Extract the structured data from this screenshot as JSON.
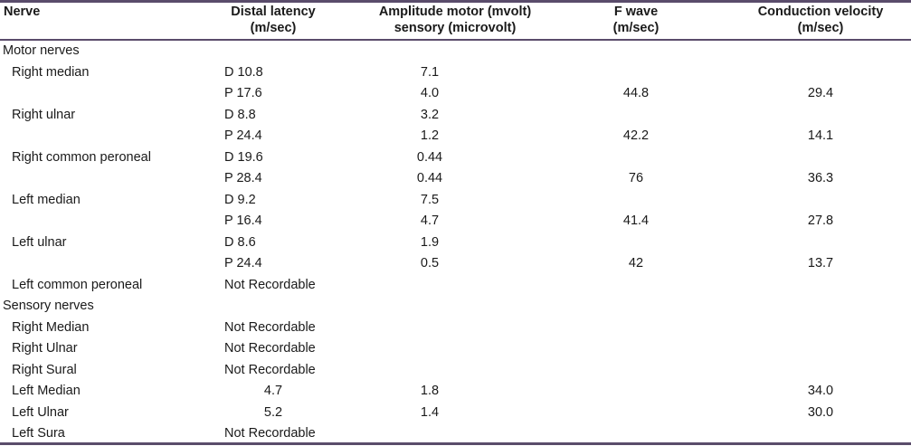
{
  "header": {
    "nerve": "Nerve",
    "latency_l1": "Distal latency",
    "latency_l2": "(m/sec)",
    "amp_l1": "Amplitude motor (mvolt)",
    "amp_l2": "sensory (microvolt)",
    "fwave_l1": "F wave",
    "fwave_l2": "(m/sec)",
    "cv_l1": "Conduction velocity",
    "cv_l2": "(m/sec)"
  },
  "rows": [
    {
      "nerve": "Motor nerves",
      "lat": "",
      "amp": "",
      "fw": "",
      "cv": ""
    },
    {
      "nerve": "Right median",
      "lat": "D 10.8",
      "amp": "7.1",
      "fw": "",
      "cv": ""
    },
    {
      "nerve": "",
      "lat": "P 17.6",
      "amp": "4.0",
      "fw": "44.8",
      "cv": "29.4"
    },
    {
      "nerve": "Right ulnar",
      "lat": "D 8.8",
      "amp": "3.2",
      "fw": "",
      "cv": ""
    },
    {
      "nerve": "",
      "lat": "P 24.4",
      "amp": "1.2",
      "fw": "42.2",
      "cv": "14.1"
    },
    {
      "nerve": "Right common peroneal",
      "lat": "D 19.6",
      "amp": "0.44",
      "fw": "",
      "cv": ""
    },
    {
      "nerve": "",
      "lat": "P 28.4",
      "amp": "0.44",
      "fw": "76",
      "cv": "36.3"
    },
    {
      "nerve": "Left median",
      "lat": "D 9.2",
      "amp": "7.5",
      "fw": "",
      "cv": ""
    },
    {
      "nerve": "",
      "lat": "P 16.4",
      "amp": "4.7",
      "fw": "41.4",
      "cv": "27.8"
    },
    {
      "nerve": "Left ulnar",
      "lat": "D 8.6",
      "amp": "1.9",
      "fw": "",
      "cv": ""
    },
    {
      "nerve": "",
      "lat": "P 24.4",
      "amp": "0.5",
      "fw": "42",
      "cv": "13.7"
    },
    {
      "nerve": "Left common peroneal",
      "lat": "Not Recordable",
      "amp": "",
      "fw": "",
      "cv": ""
    },
    {
      "nerve": "Sensory nerves",
      "lat": "",
      "amp": "",
      "fw": "",
      "cv": ""
    },
    {
      "nerve": "Right Median",
      "lat": "Not Recordable",
      "amp": "",
      "fw": "",
      "cv": ""
    },
    {
      "nerve": "Right Ulnar",
      "lat": "Not Recordable",
      "amp": "",
      "fw": "",
      "cv": ""
    },
    {
      "nerve": "Right Sural",
      "lat": "Not Recordable",
      "amp": "",
      "fw": "",
      "cv": ""
    },
    {
      "nerve": "Left Median",
      "lat": "4.7",
      "amp": "1.8",
      "fw": "",
      "cv": "34.0"
    },
    {
      "nerve": "Left Ulnar",
      "lat": "5.2",
      "amp": "1.4",
      "fw": "",
      "cv": "30.0"
    },
    {
      "nerve": "Left Sura",
      "lat": "Not Recordable",
      "amp": "",
      "fw": "",
      "cv": ""
    }
  ],
  "colors": {
    "rule": "#5a4c6b",
    "header_bg": "#ffffff",
    "text": "#1a1a1a"
  }
}
